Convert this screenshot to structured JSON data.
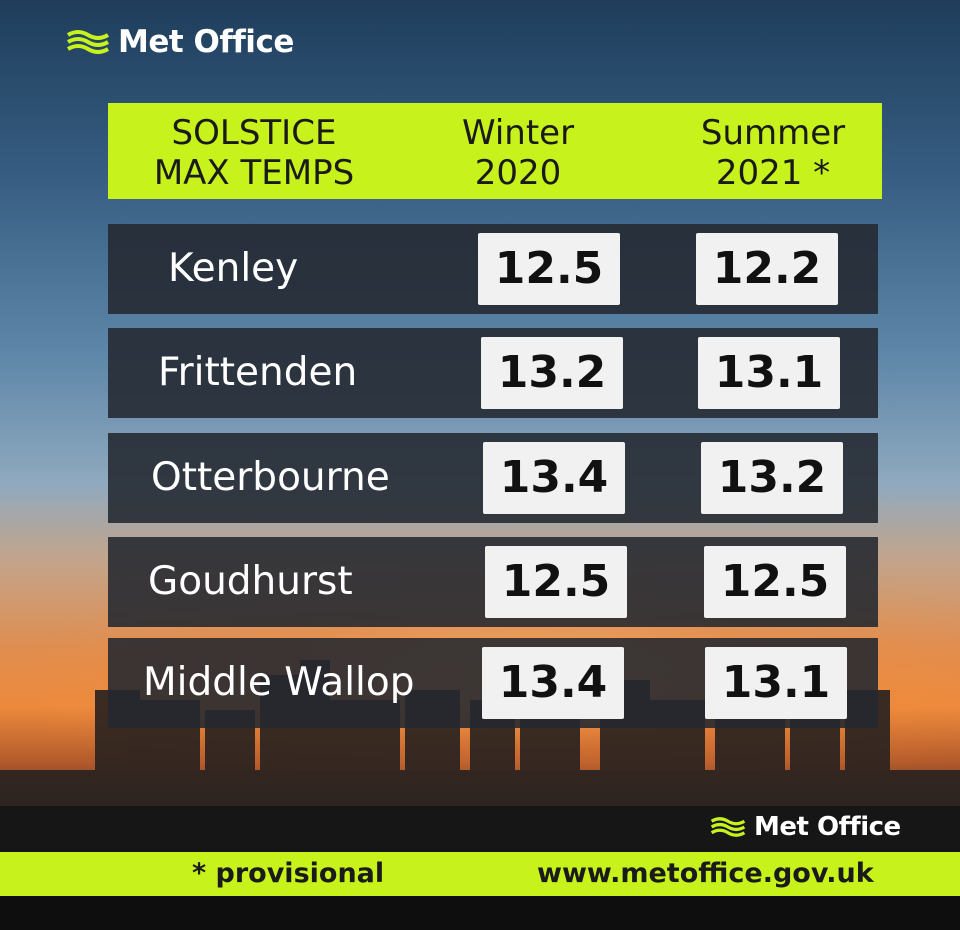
{
  "brand": {
    "name": "Met Office",
    "accent": "#c7f21b"
  },
  "header": {
    "title_line1": "SOLSTICE",
    "title_line2": "MAX TEMPS",
    "col1_line1": "Winter",
    "col1_line2": "2020",
    "col2_line1": "Summer",
    "col2_line2": "2021 *"
  },
  "rows": [
    {
      "name": "Kenley",
      "winter": "12.5",
      "summer": "12.2"
    },
    {
      "name": "Frittenden",
      "winter": "13.2",
      "summer": "13.1"
    },
    {
      "name": "Otterbourne",
      "winter": "13.4",
      "summer": "13.2"
    },
    {
      "name": "Goudhurst",
      "winter": "12.5",
      "summer": "12.5"
    },
    {
      "name": "Middle Wallop",
      "winter": "13.4",
      "summer": "13.1"
    }
  ],
  "footer": {
    "note": "* provisional",
    "url": "www.metoffice.gov.uk"
  }
}
